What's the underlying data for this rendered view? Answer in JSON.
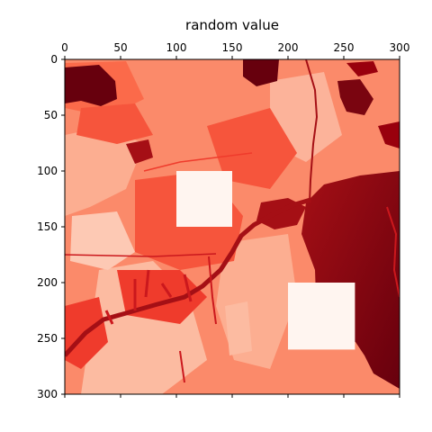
{
  "chart_data": {
    "type": "heatmap",
    "title": "random value",
    "xlabel": "",
    "ylabel": "",
    "xlim": [
      0,
      300
    ],
    "ylim": [
      300,
      0
    ],
    "x_ticks": [
      0,
      50,
      100,
      150,
      200,
      250,
      300
    ],
    "y_ticks": [
      0,
      50,
      100,
      150,
      200,
      250,
      300
    ],
    "x_axis_position": "top",
    "colormap": "Reds",
    "grid": false,
    "legend": "none",
    "colors": {
      "lightest": "#fff5f0",
      "light": "#fcbba1",
      "mid": "#fb6a4a",
      "dark": "#cb181d",
      "darkest": "#67000d"
    },
    "masked_regions": [
      {
        "x": [
          100,
          150
        ],
        "y": [
          100,
          150
        ],
        "value": "minimum"
      },
      {
        "x": [
          200,
          260
        ],
        "y": [
          200,
          260
        ],
        "value": "minimum"
      }
    ]
  }
}
